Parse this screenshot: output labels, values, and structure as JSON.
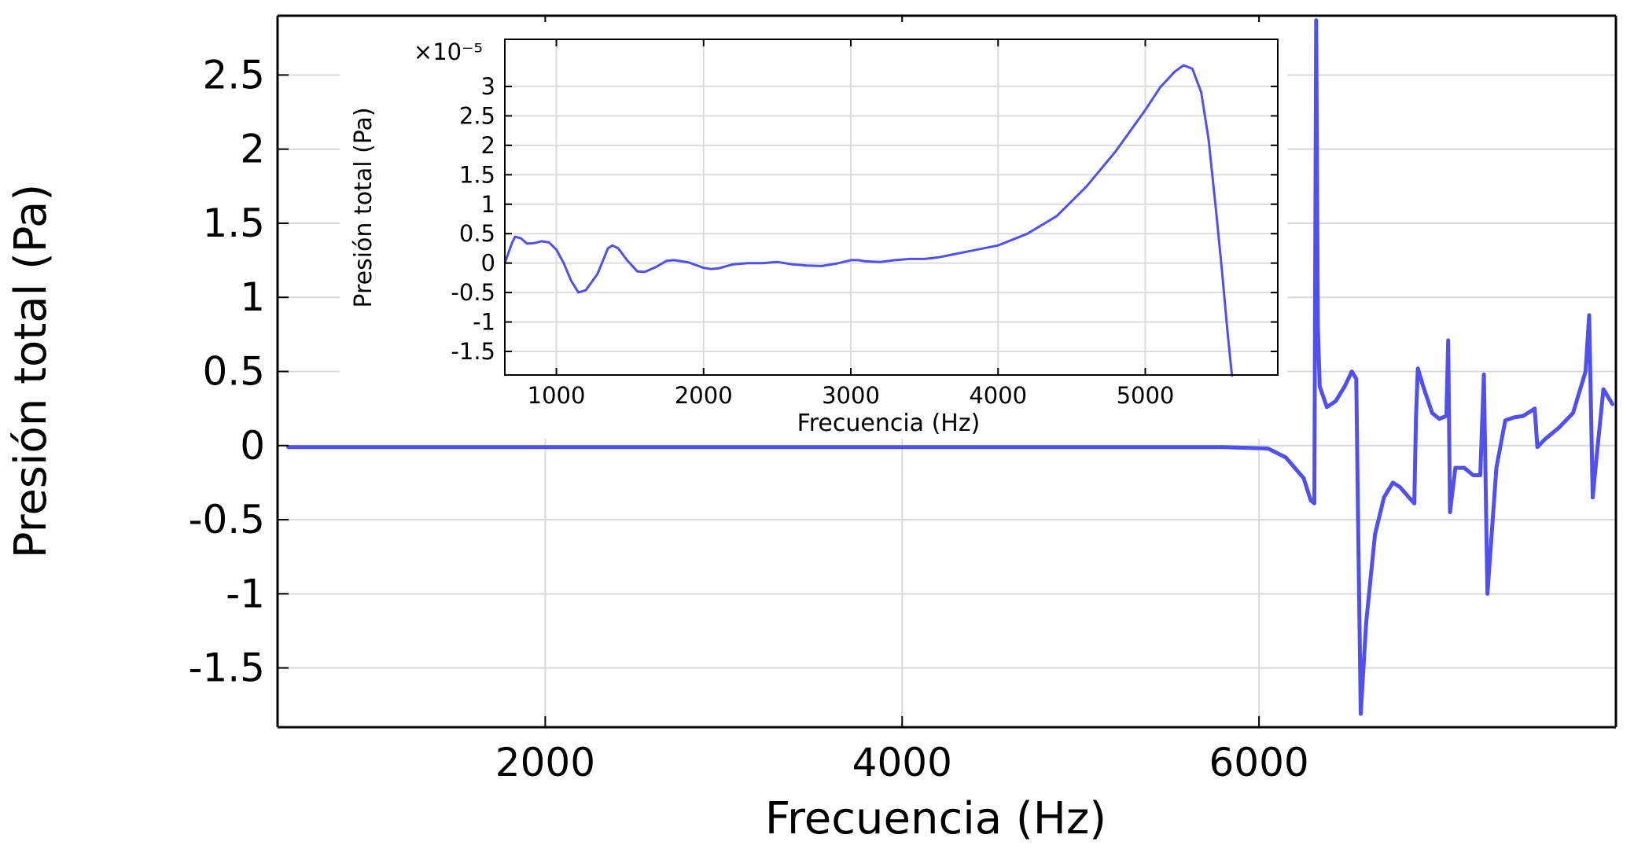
{
  "chart_data": [
    {
      "id": "main",
      "type": "line",
      "title": "",
      "xlabel": "Frecuencia (Hz)",
      "ylabel": "Presión total (Pa)",
      "xlim": [
        500,
        8000
      ],
      "ylim": [
        -1.9,
        2.9
      ],
      "xticks": [
        2000,
        4000,
        6000
      ],
      "xtick_labels": [
        "2000",
        "4000",
        "6000"
      ],
      "yticks": [
        2.5,
        2,
        1.5,
        1,
        0.5,
        0,
        -0.5,
        -1,
        -1.5
      ],
      "ytick_labels": [
        "2.5",
        "2",
        "1.5",
        "1",
        "0.5",
        "0",
        "-0.5",
        "-1",
        "-1.5"
      ],
      "grid": true,
      "series": [
        {
          "color": "#5050f0",
          "x": [
            560,
            1000,
            2000,
            3000,
            4000,
            5000,
            5800,
            6050,
            6150,
            6250,
            6290,
            6310,
            6320,
            6330,
            6340,
            6380,
            6430,
            6480,
            6520,
            6545,
            6555,
            6570,
            6600,
            6650,
            6700,
            6750,
            6790,
            6840,
            6870,
            6880,
            6890,
            6920,
            6970,
            7010,
            7050,
            7060,
            7070,
            7100,
            7150,
            7200,
            7240,
            7260,
            7280,
            7330,
            7380,
            7430,
            7480,
            7520,
            7545,
            7560,
            7600,
            7680,
            7760,
            7830,
            7850,
            7870,
            7890,
            7930,
            7980
          ],
          "y": [
            -0.01,
            -0.01,
            -0.01,
            -0.01,
            -0.01,
            -0.01,
            -0.01,
            -0.02,
            -0.08,
            -0.22,
            -0.37,
            -0.39,
            2.87,
            0.8,
            0.4,
            0.26,
            0.3,
            0.4,
            0.5,
            0.45,
            -0.5,
            -1.81,
            -1.2,
            -0.6,
            -0.35,
            -0.25,
            -0.28,
            -0.35,
            -0.39,
            0.2,
            0.52,
            0.4,
            0.22,
            0.18,
            0.2,
            0.71,
            -0.45,
            -0.15,
            -0.15,
            -0.2,
            -0.2,
            0.48,
            -1.0,
            -0.15,
            0.17,
            0.19,
            0.2,
            0.23,
            0.25,
            -0.01,
            0.04,
            0.12,
            0.22,
            0.5,
            0.88,
            -0.35,
            -0.1,
            0.38,
            0.28
          ]
        }
      ]
    },
    {
      "id": "inset",
      "type": "line",
      "title": "",
      "xlabel": "Frecuencia (Hz)",
      "ylabel": "Presión total (Pa)",
      "scale_label": "×10⁻⁵",
      "xlim": [
        650,
        5900
      ],
      "ylim": [
        -1.9,
        3.8
      ],
      "xticks": [
        1000,
        2000,
        3000,
        4000,
        5000
      ],
      "xtick_labels": [
        "1000",
        "2000",
        "3000",
        "4000",
        "5000"
      ],
      "yticks": [
        3,
        2.5,
        2,
        1.5,
        1,
        0.5,
        0,
        -0.5,
        -1,
        -1.5
      ],
      "ytick_labels": [
        "3",
        "2.5",
        "2",
        "1.5",
        "1",
        "0.5",
        "0",
        "-0.5",
        "-1",
        "-1.5"
      ],
      "grid": true,
      "series": [
        {
          "color": "#5050f0",
          "x": [
            650,
            700,
            720,
            760,
            800,
            850,
            900,
            950,
            1000,
            1050,
            1100,
            1150,
            1200,
            1280,
            1350,
            1380,
            1420,
            1480,
            1550,
            1600,
            1680,
            1750,
            1800,
            1900,
            2000,
            2050,
            2100,
            2200,
            2300,
            2400,
            2500,
            2600,
            2700,
            2800,
            2900,
            3000,
            3050,
            3100,
            3200,
            3300,
            3400,
            3500,
            3600,
            3700,
            3800,
            4000,
            4200,
            4400,
            4600,
            4800,
            5000,
            5100,
            5200,
            5260,
            5320,
            5380,
            5430,
            5480,
            5520,
            5560,
            5590
          ],
          "y": [
            0.0,
            0.35,
            0.45,
            0.42,
            0.33,
            0.34,
            0.37,
            0.35,
            0.23,
            0.0,
            -0.3,
            -0.5,
            -0.46,
            -0.18,
            0.25,
            0.3,
            0.25,
            0.05,
            -0.14,
            -0.15,
            -0.06,
            0.04,
            0.05,
            0.01,
            -0.08,
            -0.1,
            -0.09,
            -0.02,
            0.0,
            0.0,
            0.02,
            -0.02,
            -0.04,
            -0.05,
            -0.01,
            0.05,
            0.05,
            0.03,
            0.02,
            0.05,
            0.07,
            0.07,
            0.1,
            0.15,
            0.2,
            0.3,
            0.5,
            0.8,
            1.3,
            1.9,
            2.6,
            2.98,
            3.25,
            3.36,
            3.3,
            2.9,
            2.1,
            0.9,
            -0.1,
            -1.2,
            -1.95
          ]
        }
      ]
    }
  ]
}
